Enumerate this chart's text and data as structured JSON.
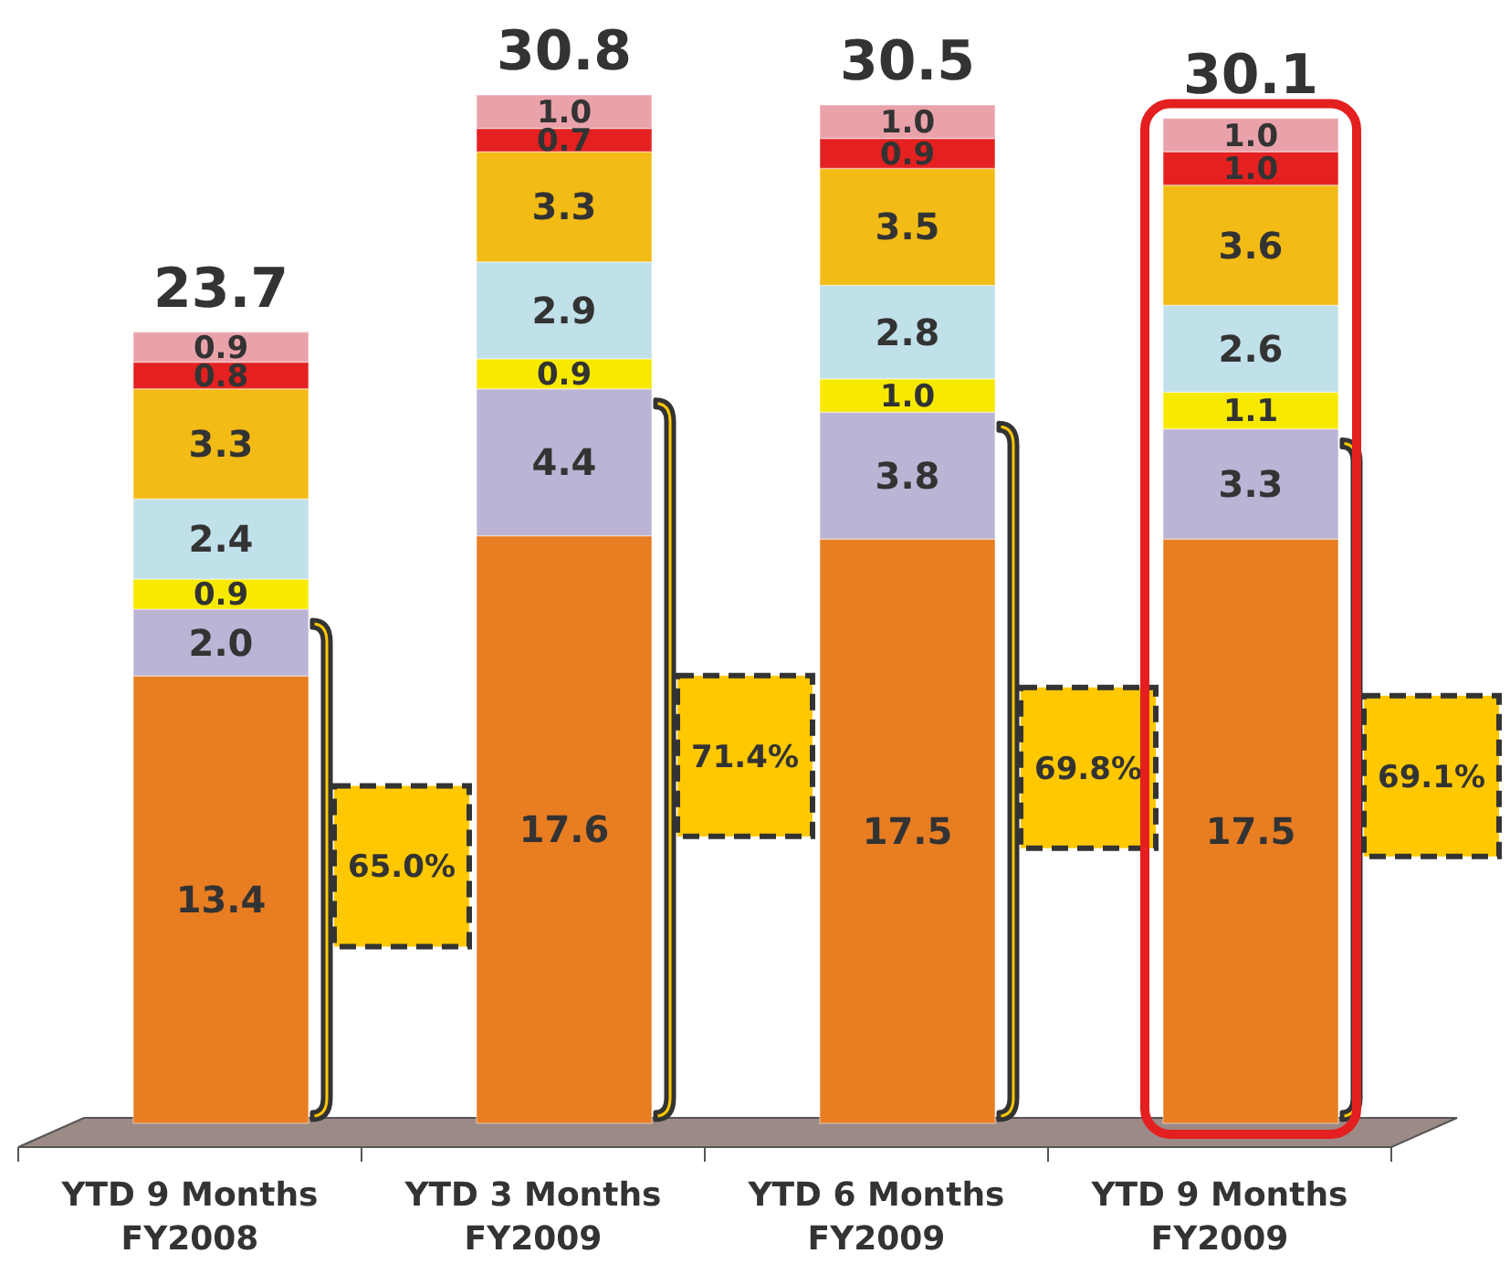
{
  "chart_data": {
    "type": "bar",
    "stacked": true,
    "categories": [
      "YTD 9 Months FY2008",
      "YTD 3 Months FY2009",
      "YTD 6 Months FY2009",
      "YTD 9 Months FY2009"
    ],
    "series": [
      {
        "color": "#e87d22",
        "values": [
          13.4,
          17.6,
          17.5,
          17.5
        ],
        "value_labels": [
          "13.4",
          "17.6",
          "17.5",
          "17.5"
        ]
      },
      {
        "color": "#bcb4d4",
        "values": [
          2.0,
          4.4,
          3.8,
          3.3
        ],
        "value_labels": [
          "2.0",
          "4.4",
          "3.8",
          "3.3"
        ]
      },
      {
        "color": "#f7ea00",
        "values": [
          0.9,
          0.9,
          1.0,
          1.1
        ],
        "value_labels": [
          "0.9",
          "0.9",
          "1.0",
          "1.1"
        ]
      },
      {
        "color": "#c0e0ea",
        "values": [
          2.4,
          2.9,
          2.8,
          2.6
        ],
        "value_labels": [
          "2.4",
          "2.9",
          "2.8",
          "2.6"
        ]
      },
      {
        "color": "#f2bb16",
        "values": [
          3.3,
          3.3,
          3.5,
          3.6
        ],
        "value_labels": [
          "3.3",
          "3.3",
          "3.5",
          "3.6"
        ]
      },
      {
        "color": "#e42020",
        "values": [
          0.8,
          0.7,
          0.9,
          1.0
        ],
        "value_labels": [
          "0.8",
          "0.7",
          "0.9",
          "1.0"
        ]
      },
      {
        "color": "#eaa2aa",
        "values": [
          0.9,
          1.0,
          1.0,
          1.0
        ],
        "value_labels": [
          "0.9",
          "1.0",
          "1.0",
          "1.0"
        ]
      }
    ],
    "totals": [
      "23.7",
      "30.8",
      "30.5",
      "30.1"
    ],
    "annotations": [
      "65.0%",
      "71.4%",
      "69.8%",
      "69.1%"
    ]
  }
}
